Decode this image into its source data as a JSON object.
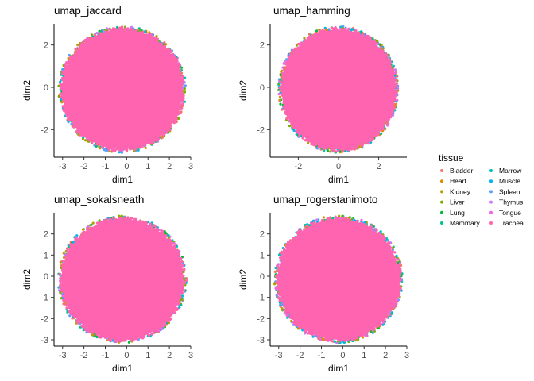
{
  "chart_data": {
    "type": "scatter",
    "shape": "disk",
    "legend": {
      "title": "tissue",
      "placement": "right",
      "entries": [
        {
          "label": "Bladder",
          "color": "#F8766D"
        },
        {
          "label": "Heart",
          "color": "#DE8C00"
        },
        {
          "label": "Kidney",
          "color": "#B79F00"
        },
        {
          "label": "Liver",
          "color": "#7CAE00"
        },
        {
          "label": "Lung",
          "color": "#00BA38"
        },
        {
          "label": "Mammary",
          "color": "#00C08B"
        },
        {
          "label": "Marrow",
          "color": "#00BFC4"
        },
        {
          "label": "Muscle",
          "color": "#00B4F0"
        },
        {
          "label": "Spleen",
          "color": "#619CFF"
        },
        {
          "label": "Thymus",
          "color": "#C77CFF"
        },
        {
          "label": "Tongue",
          "color": "#F564E3"
        },
        {
          "label": "Trachea",
          "color": "#FF64B0"
        }
      ]
    },
    "panels": [
      {
        "title": "umap_jaccard",
        "xlabel": "dim1",
        "ylabel": "dim2",
        "xlim": [
          -3.4,
          3.0
        ],
        "ylim": [
          -3.3,
          3.0
        ],
        "xticks": [
          -3,
          -2,
          -1,
          0,
          1,
          2,
          3
        ],
        "yticks": [
          -2,
          0,
          2
        ],
        "cloud": {
          "cx": -0.2,
          "cy": -0.1,
          "r": 2.9
        }
      },
      {
        "title": "umap_hamming",
        "xlabel": "dim1",
        "ylabel": "dim2",
        "xlim": [
          -3.4,
          3.4
        ],
        "ylim": [
          -3.3,
          3.0
        ],
        "xticks": [
          -2,
          0,
          2
        ],
        "yticks": [
          -2,
          0,
          2
        ],
        "cloud": {
          "cx": 0.0,
          "cy": -0.1,
          "r": 2.9
        }
      },
      {
        "title": "umap_sokalsneath",
        "xlabel": "dim1",
        "ylabel": "dim2",
        "xlim": [
          -3.4,
          3.0
        ],
        "ylim": [
          -3.3,
          3.0
        ],
        "xticks": [
          -3,
          -2,
          -1,
          0,
          1,
          2,
          3
        ],
        "yticks": [
          -3,
          -2,
          -1,
          0,
          1,
          2
        ],
        "cloud": {
          "cx": -0.2,
          "cy": -0.15,
          "r": 2.92
        }
      },
      {
        "title": "umap_rogerstanimoto",
        "xlabel": "dim1",
        "ylabel": "dim2",
        "xlim": [
          -3.4,
          3.0
        ],
        "ylim": [
          -3.3,
          3.0
        ],
        "xticks": [
          -3,
          -2,
          -1,
          0,
          1,
          2,
          3
        ],
        "yticks": [
          -3,
          -2,
          -1,
          0,
          1,
          2
        ],
        "cloud": {
          "cx": -0.2,
          "cy": -0.15,
          "r": 2.92
        }
      }
    ]
  }
}
